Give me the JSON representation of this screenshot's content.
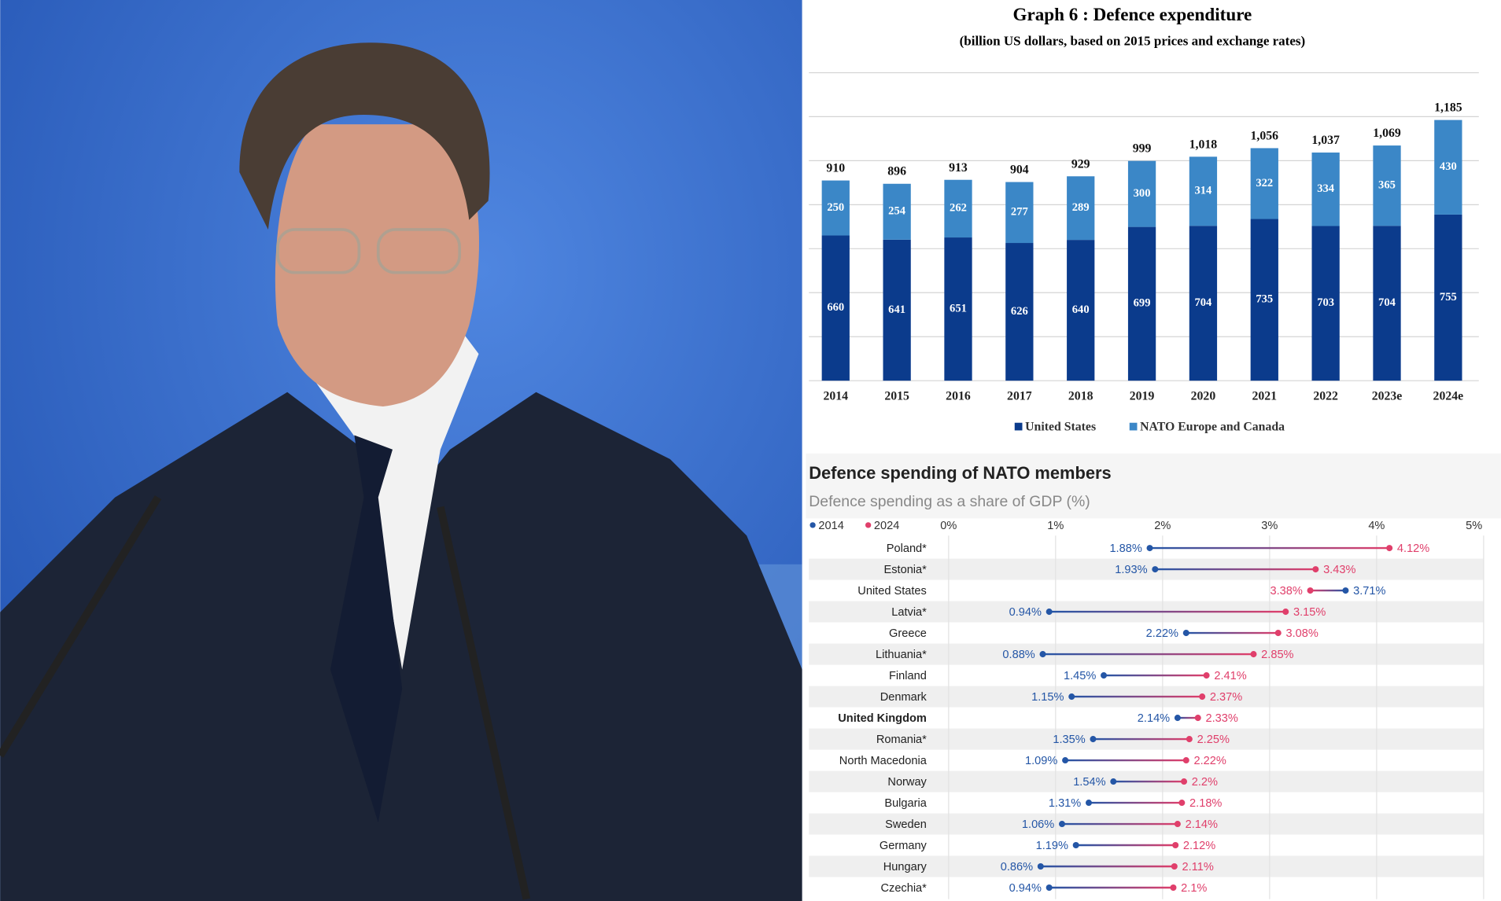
{
  "chart_data": [
    {
      "type": "bar",
      "stacked": true,
      "title": "Graph 6 : Defence expenditure",
      "subtitle": "(billion US dollars, based on 2015 prices and exchange rates)",
      "categories": [
        "2014",
        "2015",
        "2016",
        "2017",
        "2018",
        "2019",
        "2020",
        "2021",
        "2022",
        "2023e",
        "2024e"
      ],
      "series": [
        {
          "name": "United States",
          "color": "#0b3b8c",
          "values": [
            660,
            641,
            651,
            626,
            640,
            699,
            704,
            735,
            703,
            704,
            755
          ]
        },
        {
          "name": "NATO Europe and Canada",
          "color": "#3b87c7",
          "values": [
            250,
            254,
            262,
            277,
            289,
            300,
            314,
            322,
            334,
            365,
            430
          ]
        }
      ],
      "totals": [
        910,
        896,
        913,
        904,
        929,
        999,
        1018,
        1056,
        1037,
        1069,
        1185
      ],
      "total_labels": [
        "910",
        "896",
        "913",
        "904",
        "929",
        "999",
        "1,018",
        "1,056",
        "1,037",
        "1,069",
        "1,185"
      ],
      "ylim": [
        0,
        1400
      ],
      "yticks": [
        0,
        200,
        400,
        600,
        800,
        1000,
        1200,
        1400
      ],
      "grid": true,
      "legend": "bottom"
    },
    {
      "type": "dumbbell",
      "title": "Defence spending of NATO members",
      "subtitle": "Defence spending as a share of GDP (%)",
      "categories": [
        "Poland*",
        "Estonia*",
        "United States",
        "Latvia*",
        "Greece",
        "Lithuania*",
        "Finland",
        "Denmark",
        "United Kingdom",
        "Romania*",
        "North Macedonia",
        "Norway",
        "Bulgaria",
        "Sweden",
        "Germany",
        "Hungary",
        "Czechia*"
      ],
      "highlight": "United Kingdom",
      "series": [
        {
          "name": "2014",
          "color": "#2456a6",
          "values": [
            1.88,
            1.93,
            3.71,
            0.94,
            2.22,
            0.88,
            1.45,
            1.15,
            2.14,
            1.35,
            1.09,
            1.54,
            1.31,
            1.06,
            1.19,
            0.86,
            0.94
          ],
          "value_labels": [
            "1.88%",
            "1.93%",
            "3.71%",
            "0.94%",
            "2.22%",
            "0.88%",
            "1.45%",
            "1.15%",
            "2.14%",
            "1.35%",
            "1.09%",
            "1.54%",
            "1.31%",
            "1.06%",
            "1.19%",
            "0.86%",
            "0.94%"
          ]
        },
        {
          "name": "2024",
          "color": "#e03f6b",
          "values": [
            4.12,
            3.43,
            3.38,
            3.15,
            3.08,
            2.85,
            2.41,
            2.37,
            2.33,
            2.25,
            2.22,
            2.2,
            2.18,
            2.14,
            2.12,
            2.11,
            2.1
          ],
          "value_labels": [
            "4.12%",
            "3.43%",
            "3.38%",
            "3.15%",
            "3.08%",
            "2.85%",
            "2.41%",
            "2.37%",
            "2.33%",
            "2.25%",
            "2.22%",
            "2.2%",
            "2.18%",
            "2.14%",
            "2.12%",
            "2.11%",
            "2.1%"
          ]
        }
      ],
      "xlim": [
        0,
        5
      ],
      "xticks": [
        {
          "value": 0,
          "label": "0%"
        },
        {
          "value": 1,
          "label": "1%"
        },
        {
          "value": 2,
          "label": "2%"
        },
        {
          "value": 3,
          "label": "3%"
        },
        {
          "value": 4,
          "label": "4%"
        },
        {
          "value": 5,
          "label": "5%"
        }
      ],
      "grid": true,
      "legend": "top-left"
    }
  ]
}
